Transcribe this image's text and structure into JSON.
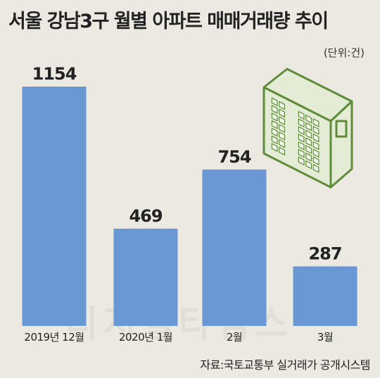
{
  "header": {
    "title": "서울 강남3구 월별 아파트 매매거래량 추이",
    "unit": "(단위:건)"
  },
  "footer": {
    "source": "자료:국토교통부 실거래가 공개시스템"
  },
  "watermark": {
    "text": "디지털타임스"
  },
  "colors": {
    "bar": "#6a98d4",
    "building_outline": "#5f8c3a",
    "building_fill": "#e4ecd6"
  },
  "icons": {
    "illustration": "apartment-building-icon"
  },
  "chart_data": {
    "type": "bar",
    "categories": [
      "2019년 12월",
      "2020년 1월",
      "2월",
      "3월"
    ],
    "values": [
      1154,
      469,
      754,
      287
    ],
    "data_labels": [
      "1154",
      "469",
      "754",
      "287"
    ],
    "title": "서울 강남3구 월별 아파트 매매거래량 추이",
    "xlabel": "",
    "ylabel": "",
    "ylim": [
      0,
      1154
    ],
    "grid": false,
    "legend": "none"
  }
}
